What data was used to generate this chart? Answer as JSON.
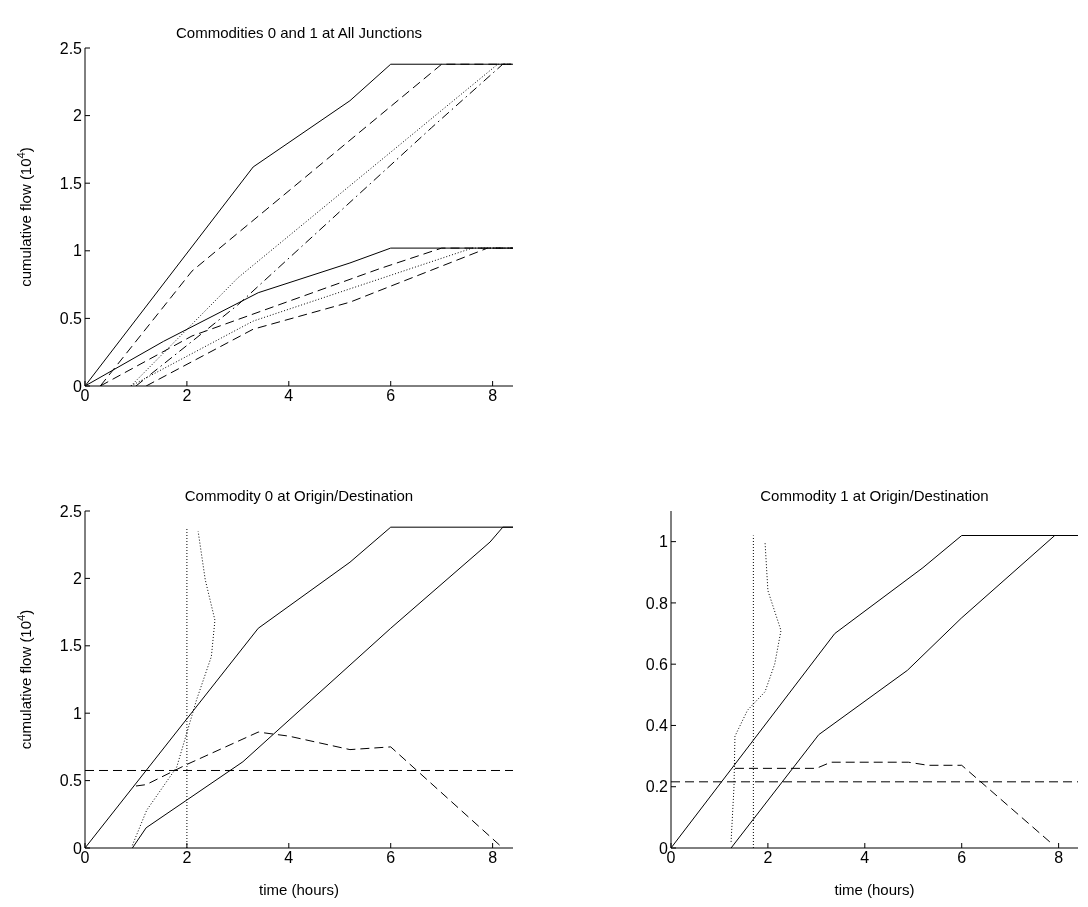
{
  "chart_data": [
    {
      "type": "line",
      "title": "Commodities 0 and 1 at All Junctions",
      "ylabel": "cumulative flow (10$^{4}$)",
      "xlim": [
        0,
        8.4
      ],
      "xticks": [
        0,
        2,
        4,
        6,
        8
      ],
      "ylim": [
        0,
        2.5
      ],
      "yticks": [
        0,
        0.5,
        1,
        1.5,
        2,
        2.5
      ],
      "grid": false,
      "series": [
        {
          "color": "#000000",
          "line_style": "solid",
          "x": [
            0,
            3.3,
            5.2,
            6,
            8.4
          ],
          "values": [
            0,
            1.62,
            2.11,
            2.38,
            2.38
          ]
        },
        {
          "color": "#000000",
          "line_style": "dashed",
          "x": [
            0.3,
            2.1,
            7,
            8.4
          ],
          "values": [
            0,
            0.85,
            2.38,
            2.38
          ]
        },
        {
          "color": "#000000",
          "line_style": "dotted",
          "x": [
            0.9,
            3,
            8.1,
            8.4
          ],
          "values": [
            0,
            0.8,
            2.38,
            2.38
          ]
        },
        {
          "color": "#000000",
          "line_style": "dashdot",
          "x": [
            1,
            3,
            6.8,
            8.2,
            8.4
          ],
          "values": [
            0,
            0.6,
            1.91,
            2.38,
            2.38
          ]
        },
        {
          "color": "#000000",
          "line_style": "solid",
          "x": [
            0,
            1.54,
            3.4,
            5.2,
            6,
            8.4
          ],
          "values": [
            0,
            0.33,
            0.69,
            0.91,
            1.02,
            1.02
          ]
        },
        {
          "color": "#000000",
          "line_style": "dashed",
          "x": [
            0.3,
            2.1,
            5.8,
            7,
            8.4
          ],
          "values": [
            0,
            0.37,
            0.87,
            1.02,
            1.02
          ]
        },
        {
          "color": "#000000",
          "line_style": "dotted",
          "x": [
            0.9,
            3.3,
            7.6,
            8.4
          ],
          "values": [
            0,
            0.48,
            1.02,
            1.02
          ]
        },
        {
          "color": "#000000",
          "line_style": "dashed",
          "x": [
            1.2,
            3.3,
            5.2,
            7.9,
            8.4
          ],
          "values": [
            0,
            0.42,
            0.62,
            1.02,
            1.02
          ]
        }
      ]
    },
    {
      "type": "line",
      "title": "Commodity 0 at Origin/Destination",
      "xlabel": "time (hours)",
      "ylabel": "cumulative flow (10$^{4}$)",
      "xlim": [
        0,
        8.4
      ],
      "xticks": [
        0,
        2,
        4,
        6,
        8
      ],
      "ylim": [
        0,
        2.5
      ],
      "yticks": [
        0,
        0.5,
        1,
        1.5,
        2,
        2.5
      ],
      "grid": false,
      "ref_lines": [
        {
          "axis": "y",
          "value": 0.575,
          "color": "#000000",
          "line_style": "dashed"
        }
      ],
      "series": [
        {
          "color": "#000000",
          "line_style": "solid",
          "x": [
            0,
            3.4,
            5.2,
            6,
            8.4
          ],
          "values": [
            0,
            1.63,
            2.12,
            2.38,
            2.38
          ]
        },
        {
          "color": "#000000",
          "line_style": "solid",
          "x": [
            0.93,
            1.2,
            3.1,
            6,
            7.95,
            8.2,
            8.4
          ],
          "values": [
            0,
            0.15,
            0.64,
            1.63,
            2.27,
            2.38,
            2.38
          ]
        },
        {
          "color": "#000000",
          "line_style": "dashed",
          "x": [
            1.0,
            1.2,
            2.0,
            3.4,
            4.0,
            5.2,
            6.0,
            8.2
          ],
          "values": [
            0.46,
            0.47,
            0.62,
            0.86,
            0.83,
            0.73,
            0.75,
            0
          ]
        },
        {
          "color": "#000000",
          "line_style": "dotted",
          "x": [
            2,
            2,
            2
          ],
          "values": [
            0,
            1.2,
            2.38
          ]
        },
        {
          "color": "#000000",
          "line_style": "dotted",
          "x": [
            0.93,
            1.21,
            1.8,
            2.19,
            2.48,
            2.55,
            2.36,
            2.22
          ],
          "values": [
            0.02,
            0.28,
            0.6,
            1.1,
            1.42,
            1.69,
            1.99,
            2.35
          ]
        }
      ]
    },
    {
      "type": "line",
      "title": "Commodity 1 at Origin/Destination",
      "xlabel": "time (hours)",
      "xlim": [
        0,
        8.4
      ],
      "xticks": [
        0,
        2,
        4,
        6,
        8
      ],
      "ylim": [
        0,
        1.1
      ],
      "yticks": [
        0,
        0.2,
        0.4,
        0.6,
        0.8,
        1
      ],
      "grid": false,
      "ref_lines": [
        {
          "axis": "y",
          "value": 0.216,
          "color": "#000000",
          "line_style": "dashed"
        }
      ],
      "series": [
        {
          "color": "#000000",
          "line_style": "solid",
          "x": [
            0,
            3.38,
            5.2,
            6,
            8.4
          ],
          "values": [
            0,
            0.7,
            0.915,
            1.02,
            1.02
          ]
        },
        {
          "color": "#000000",
          "line_style": "solid",
          "x": [
            1.24,
            3.05,
            4.88,
            5.99,
            7.92,
            8.4
          ],
          "values": [
            0,
            0.37,
            0.58,
            0.75,
            1.02,
            1.02
          ]
        },
        {
          "color": "#000000",
          "line_style": "dashed",
          "x": [
            1.32,
            3.0,
            3.3,
            4.9,
            5.3,
            6.0,
            7.89
          ],
          "values": [
            0.26,
            0.26,
            0.28,
            0.28,
            0.27,
            0.27,
            0.01
          ]
        },
        {
          "color": "#000000",
          "line_style": "dotted",
          "x": [
            1.7,
            1.7
          ],
          "values": [
            0,
            1.02
          ]
        },
        {
          "color": "#000000",
          "line_style": "dotted",
          "x": [
            1.24,
            1.3,
            1.32,
            1.58,
            1.94,
            2.14,
            2.27,
            2.0,
            1.94
          ],
          "values": [
            0.02,
            0.2,
            0.365,
            0.45,
            0.51,
            0.6,
            0.71,
            0.84,
            1.0
          ]
        }
      ]
    }
  ]
}
